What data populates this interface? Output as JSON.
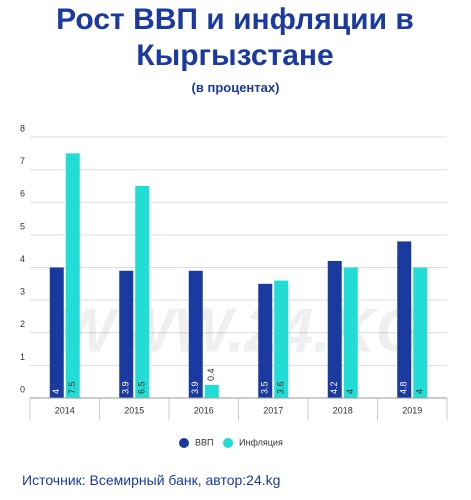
{
  "chart_data": {
    "type": "bar",
    "title": "Рост ВВП и инфляции в Кыргызстане",
    "subtitle": "(в процентах)",
    "categories": [
      "2014",
      "2015",
      "2016",
      "2017",
      "2018",
      "2019"
    ],
    "series": [
      {
        "name": "ВВП",
        "color": "#1b3aa0",
        "values": [
          4,
          3.9,
          3.9,
          3.5,
          4.2,
          4.8
        ]
      },
      {
        "name": "Инфляция",
        "color": "#22ddd6",
        "values": [
          7.5,
          6.5,
          0.4,
          3.6,
          4,
          4
        ]
      }
    ],
    "ylim": [
      0,
      8
    ],
    "yticks": [
      0,
      1,
      2,
      3,
      4,
      5,
      6,
      7,
      8
    ],
    "grid": true,
    "watermark": "WWW.24.KG",
    "source": "Источник: Всемирный банк, автор:24.kg"
  }
}
